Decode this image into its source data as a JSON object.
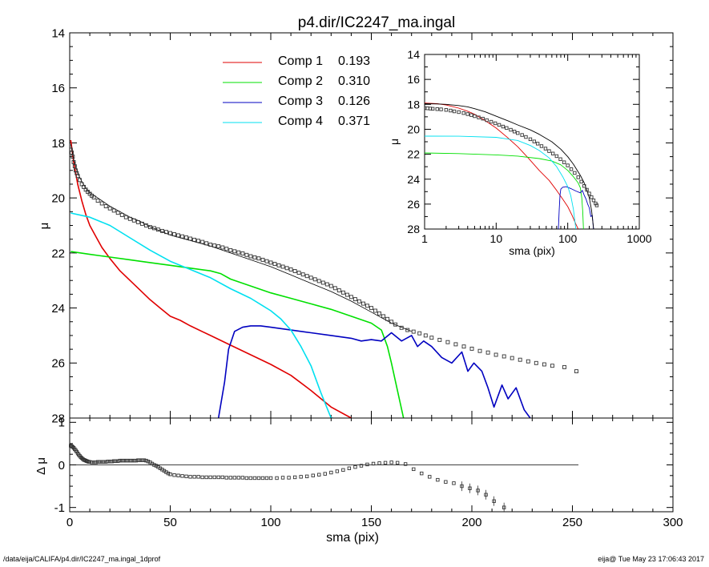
{
  "title": "p4.dir/IC2247_ma.ingal",
  "footer": {
    "left": "/data/eija/CALIFA/p4.dir/IC2247_ma.ingal_1dprof",
    "right": "eija@  Tue May 23 17:06:43 2017"
  },
  "chart_data": [
    {
      "id": "main",
      "type": "line",
      "xlabel": "",
      "ylabel": "μ",
      "xlim": [
        0,
        300
      ],
      "ylim": [
        28,
        14
      ],
      "y_reversed": true,
      "xticks": [
        "0",
        "50",
        "100",
        "150",
        "200",
        "250",
        "300"
      ],
      "yticks": [
        "14",
        "16",
        "18",
        "20",
        "22",
        "24",
        "26",
        "28"
      ],
      "legend_placement": "top-center",
      "legend": [
        {
          "label": "Comp 1",
          "value": "0.193",
          "color": "#e00000"
        },
        {
          "label": "Comp 2",
          "value": "0.310",
          "color": "#00e000"
        },
        {
          "label": "Comp 3",
          "value": "0.126",
          "color": "#0000c0"
        },
        {
          "label": "Comp 4",
          "value": "0.371",
          "color": "#00e0f0"
        }
      ],
      "series": [
        {
          "name": "Comp 1",
          "color": "#e00000",
          "x": [
            0.5,
            2,
            4,
            6,
            8,
            10,
            13,
            16,
            20,
            25,
            30,
            35,
            40,
            45,
            50,
            55,
            60,
            70,
            80,
            90,
            100,
            110,
            120,
            130,
            140
          ],
          "y": [
            17.9,
            18.7,
            19.5,
            20.1,
            20.6,
            21.0,
            21.4,
            21.8,
            22.2,
            22.65,
            23.0,
            23.35,
            23.7,
            24.0,
            24.3,
            24.45,
            24.65,
            25.0,
            25.35,
            25.7,
            26.05,
            26.45,
            27.0,
            27.6,
            28.0
          ]
        },
        {
          "name": "Comp 2",
          "color": "#00e000",
          "x": [
            0.5,
            10,
            20,
            30,
            40,
            50,
            60,
            70,
            75,
            80,
            90,
            100,
            110,
            120,
            130,
            140,
            150,
            155,
            158,
            160,
            163,
            166
          ],
          "y": [
            21.95,
            22.05,
            22.15,
            22.25,
            22.35,
            22.45,
            22.55,
            22.65,
            22.75,
            22.95,
            23.2,
            23.45,
            23.65,
            23.85,
            24.05,
            24.3,
            24.55,
            24.8,
            25.4,
            26.0,
            27.0,
            28.0
          ]
        },
        {
          "name": "Comp 3",
          "color": "#0000c0",
          "x": [
            74,
            77,
            79,
            82,
            86,
            90,
            95,
            100,
            110,
            120,
            130,
            140,
            145,
            150,
            155,
            160,
            165,
            170,
            173,
            176,
            180,
            185,
            190,
            195,
            198,
            201,
            205,
            208,
            211,
            215,
            218,
            222,
            226,
            229
          ],
          "y": [
            28.0,
            26.7,
            25.5,
            24.85,
            24.7,
            24.65,
            24.65,
            24.7,
            24.8,
            24.9,
            25.0,
            25.1,
            25.2,
            25.15,
            25.2,
            24.9,
            25.2,
            25.0,
            25.4,
            25.2,
            25.4,
            25.8,
            26.0,
            25.6,
            26.3,
            26.0,
            26.3,
            26.9,
            27.6,
            26.8,
            27.3,
            26.9,
            27.7,
            28.0
          ]
        },
        {
          "name": "Comp 4",
          "color": "#00e0f0",
          "x": [
            0.5,
            10,
            20,
            30,
            40,
            50,
            60,
            70,
            80,
            90,
            100,
            105,
            110,
            115,
            120,
            125,
            130,
            131
          ],
          "y": [
            20.55,
            20.7,
            21.0,
            21.45,
            21.9,
            22.3,
            22.6,
            22.9,
            23.3,
            23.65,
            24.1,
            24.4,
            24.8,
            25.4,
            26.1,
            27.1,
            28.0,
            28.0
          ]
        },
        {
          "name": "",
          "color": "#000000",
          "x": [
            0.5,
            2,
            4,
            6,
            8,
            10,
            15,
            20,
            25,
            30,
            35,
            40,
            45,
            50,
            55,
            60,
            70,
            80,
            90,
            100,
            110,
            120,
            130,
            140,
            150,
            160,
            165,
            170
          ],
          "y": [
            18.05,
            18.6,
            19.1,
            19.4,
            19.65,
            19.8,
            20.05,
            20.3,
            20.5,
            20.7,
            20.85,
            21.05,
            21.2,
            21.35,
            21.45,
            21.55,
            21.75,
            22.0,
            22.25,
            22.5,
            22.8,
            23.1,
            23.4,
            23.75,
            24.15,
            24.55,
            24.7,
            24.85
          ]
        }
      ],
      "points": {
        "x": [
          0.5,
          1,
          1.5,
          2,
          2.5,
          3,
          3.5,
          4,
          5,
          6,
          7,
          8,
          9,
          10,
          11,
          12,
          14,
          16,
          18,
          20,
          22,
          24,
          26,
          28,
          30,
          32,
          34,
          36,
          38,
          40,
          42,
          44,
          46,
          48,
          50,
          52,
          54,
          56,
          58,
          60,
          62,
          64,
          66,
          68,
          70,
          72,
          74,
          76,
          78,
          80,
          82,
          84,
          86,
          88,
          90,
          92,
          94,
          96,
          98,
          100,
          102,
          104,
          106,
          108,
          110,
          112,
          114,
          116,
          118,
          120,
          122,
          124,
          126,
          128,
          130,
          132,
          134,
          136,
          138,
          140,
          142,
          144,
          146,
          148,
          150,
          152,
          154,
          156,
          158,
          160,
          162,
          165,
          168,
          171,
          174,
          177,
          180,
          184,
          188,
          192,
          196,
          200,
          204,
          208,
          212,
          216,
          220,
          224,
          228,
          232,
          236,
          240,
          246,
          252
        ],
        "y": [
          18.25,
          18.35,
          18.5,
          18.7,
          18.85,
          19.0,
          19.1,
          19.2,
          19.35,
          19.5,
          19.6,
          19.7,
          19.78,
          19.85,
          19.92,
          19.98,
          20.1,
          20.2,
          20.3,
          20.38,
          20.46,
          20.54,
          20.62,
          20.7,
          20.76,
          20.82,
          20.88,
          20.94,
          21.0,
          21.06,
          21.1,
          21.15,
          21.2,
          21.24,
          21.28,
          21.32,
          21.36,
          21.4,
          21.44,
          21.48,
          21.52,
          21.56,
          21.6,
          21.65,
          21.7,
          21.73,
          21.76,
          21.8,
          21.85,
          21.9,
          21.94,
          21.98,
          22.02,
          22.07,
          22.12,
          22.16,
          22.2,
          22.25,
          22.3,
          22.35,
          22.4,
          22.45,
          22.5,
          22.55,
          22.6,
          22.66,
          22.72,
          22.78,
          22.84,
          22.9,
          22.96,
          23.02,
          23.08,
          23.14,
          23.2,
          23.28,
          23.36,
          23.44,
          23.52,
          23.6,
          23.68,
          23.76,
          23.84,
          23.92,
          24.0,
          24.1,
          24.2,
          24.3,
          24.4,
          24.5,
          24.6,
          24.72,
          24.8,
          24.86,
          24.92,
          25.0,
          25.08,
          25.16,
          25.24,
          25.32,
          25.4,
          25.48,
          25.56,
          25.62,
          25.7,
          25.76,
          25.82,
          25.88,
          25.94,
          26.0,
          26.05,
          26.1,
          26.15,
          26.3
        ]
      }
    },
    {
      "id": "residual",
      "type": "scatter",
      "xlabel": "sma (pix)",
      "ylabel": "Δ μ",
      "xlim": [
        0,
        300
      ],
      "ylim": [
        -1.1,
        1.1
      ],
      "xticks": [
        "0",
        "50",
        "100",
        "150",
        "200",
        "250",
        "300"
      ],
      "yticks": [
        "1",
        "0",
        "-1"
      ],
      "zero_line_x": [
        0,
        253
      ],
      "points": {
        "x": [
          0.5,
          1,
          1.5,
          2,
          2.5,
          3,
          3.5,
          4,
          4.5,
          5,
          5.5,
          6,
          6.5,
          7,
          7.5,
          8,
          8.5,
          9,
          9.5,
          10,
          11,
          12,
          13,
          14,
          15,
          16,
          17,
          18,
          19,
          20,
          21,
          22,
          23,
          24,
          25,
          26,
          27,
          28,
          29,
          30,
          31,
          32,
          33,
          34,
          35,
          36,
          37,
          38,
          39,
          40,
          41,
          42,
          43,
          44,
          45,
          46,
          47,
          48,
          49,
          50,
          52,
          54,
          56,
          58,
          60,
          62,
          64,
          66,
          68,
          70,
          72,
          74,
          76,
          78,
          80,
          82,
          84,
          86,
          88,
          90,
          92,
          94,
          96,
          98,
          100,
          103,
          106,
          109,
          112,
          115,
          118,
          121,
          124,
          127,
          130,
          133,
          136,
          139,
          142,
          145,
          148,
          151,
          154,
          157,
          160,
          163,
          167,
          171,
          175,
          179,
          183,
          187,
          191,
          195,
          199,
          203,
          207,
          211,
          216
        ],
        "y": [
          0.45,
          0.44,
          0.42,
          0.4,
          0.37,
          0.34,
          0.31,
          0.27,
          0.24,
          0.21,
          0.18,
          0.16,
          0.14,
          0.12,
          0.11,
          0.1,
          0.09,
          0.08,
          0.07,
          0.07,
          0.06,
          0.06,
          0.06,
          0.07,
          0.07,
          0.07,
          0.07,
          0.07,
          0.08,
          0.08,
          0.08,
          0.09,
          0.09,
          0.09,
          0.1,
          0.1,
          0.1,
          0.1,
          0.1,
          0.1,
          0.1,
          0.1,
          0.1,
          0.11,
          0.11,
          0.11,
          0.11,
          0.1,
          0.08,
          0.06,
          0.03,
          0.0,
          -0.02,
          -0.05,
          -0.08,
          -0.11,
          -0.14,
          -0.17,
          -0.2,
          -0.22,
          -0.24,
          -0.25,
          -0.26,
          -0.27,
          -0.28,
          -0.28,
          -0.28,
          -0.29,
          -0.29,
          -0.29,
          -0.29,
          -0.29,
          -0.29,
          -0.3,
          -0.3,
          -0.3,
          -0.3,
          -0.3,
          -0.31,
          -0.31,
          -0.31,
          -0.31,
          -0.31,
          -0.31,
          -0.31,
          -0.31,
          -0.3,
          -0.3,
          -0.29,
          -0.28,
          -0.27,
          -0.25,
          -0.23,
          -0.21,
          -0.18,
          -0.15,
          -0.12,
          -0.08,
          -0.05,
          -0.02,
          0.01,
          0.03,
          0.04,
          0.05,
          0.06,
          0.05,
          0.02,
          -0.1,
          -0.2,
          -0.28,
          -0.35,
          -0.4,
          -0.43,
          -0.5,
          -0.55,
          -0.6,
          -0.7,
          -0.85,
          -1.0
        ]
      }
    },
    {
      "id": "inset",
      "type": "line",
      "xlabel": "sma (pix)",
      "ylabel": "μ",
      "xscale": "log",
      "xlim": [
        1,
        1000
      ],
      "ylim": [
        28,
        14
      ],
      "y_reversed": true,
      "xticks": [
        "1",
        "10",
        "100",
        "1000"
      ],
      "yticks": [
        "14",
        "16",
        "18",
        "20",
        "22",
        "24",
        "26",
        "28"
      ],
      "series": [
        {
          "name": "Comp 1",
          "color": "#e00000",
          "x": [
            1,
            1.5,
            2,
            3,
            4,
            5,
            7,
            10,
            14,
            20,
            28,
            40,
            55,
            70,
            85,
            100,
            115,
            130,
            140
          ],
          "y": [
            17.9,
            17.95,
            18.05,
            18.3,
            18.55,
            18.8,
            19.3,
            19.9,
            20.6,
            21.4,
            22.3,
            23.3,
            24.1,
            24.9,
            25.6,
            26.2,
            26.9,
            27.6,
            28.0
          ]
        },
        {
          "name": "Comp 2",
          "color": "#00e000",
          "x": [
            1,
            3,
            10,
            20,
            40,
            60,
            80,
            100,
            120,
            140,
            150,
            157,
            162,
            166
          ],
          "y": [
            21.9,
            21.95,
            22.05,
            22.15,
            22.35,
            22.55,
            22.85,
            23.3,
            23.8,
            24.3,
            24.7,
            25.5,
            26.6,
            28.0
          ]
        },
        {
          "name": "Comp 3",
          "color": "#0000c0",
          "x": [
            74,
            76,
            78,
            80,
            85,
            95,
            110,
            130,
            150,
            160,
            170,
            180,
            190,
            200,
            210,
            220,
            229
          ],
          "y": [
            28.0,
            26.5,
            25.3,
            24.8,
            24.65,
            24.6,
            24.75,
            24.95,
            25.1,
            24.9,
            25.3,
            25.6,
            26.0,
            26.3,
            27.0,
            26.9,
            28.0
          ]
        },
        {
          "name": "Comp 4",
          "color": "#00e0f0",
          "x": [
            1,
            3,
            10,
            20,
            30,
            40,
            55,
            70,
            85,
            100,
            110,
            120,
            130,
            131
          ],
          "y": [
            20.55,
            20.56,
            20.65,
            20.9,
            21.3,
            21.7,
            22.3,
            23.0,
            23.8,
            24.6,
            25.3,
            26.4,
            28.0,
            28.0
          ]
        },
        {
          "name": "",
          "color": "#000000",
          "x": [
            1,
            1.5,
            2,
            3,
            4,
            5,
            7,
            10,
            15,
            20,
            30,
            40,
            60,
            80,
            100,
            120,
            150,
            170,
            185,
            200,
            215,
            230
          ],
          "y": [
            17.95,
            17.97,
            18.0,
            18.1,
            18.2,
            18.35,
            18.6,
            18.95,
            19.35,
            19.65,
            20.05,
            20.4,
            21.0,
            21.6,
            22.2,
            22.8,
            23.7,
            24.3,
            24.9,
            25.5,
            26.5,
            28.0
          ]
        }
      ],
      "points": {
        "x": [
          1,
          1.1,
          1.2,
          1.3,
          1.5,
          1.7,
          2,
          2.3,
          2.6,
          3,
          3.5,
          4,
          4.5,
          5,
          5.7,
          6.5,
          7.4,
          8.5,
          9.7,
          11,
          12.5,
          14,
          16,
          18,
          20,
          23,
          26,
          30,
          34,
          38,
          43,
          49,
          55,
          62,
          70,
          79,
          89,
          100,
          112,
          125,
          140,
          155,
          170,
          185,
          200,
          215,
          230,
          245,
          255
        ],
        "y": [
          18.3,
          18.32,
          18.34,
          18.36,
          18.38,
          18.4,
          18.45,
          18.5,
          18.56,
          18.62,
          18.7,
          18.78,
          18.86,
          18.95,
          19.05,
          19.15,
          19.27,
          19.4,
          19.52,
          19.65,
          19.78,
          19.9,
          20.04,
          20.18,
          20.3,
          20.46,
          20.62,
          20.8,
          20.98,
          21.15,
          21.35,
          21.55,
          21.75,
          21.95,
          22.15,
          22.4,
          22.65,
          22.9,
          23.2,
          23.5,
          23.85,
          24.2,
          24.55,
          24.85,
          25.15,
          25.45,
          25.7,
          25.95,
          26.1
        ]
      }
    }
  ]
}
